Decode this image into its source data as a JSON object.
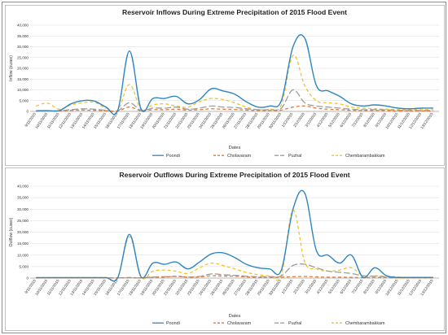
{
  "dates": [
    "9/11/2015",
    "10/11/2015",
    "11/11/2015",
    "12/11/2015",
    "13/11/2015",
    "14/11/2015",
    "15/11/2015",
    "16/11/2015",
    "17/11/2015",
    "18/11/2015",
    "19/11/2015",
    "20/11/2015",
    "21/11/2015",
    "22/11/2015",
    "23/11/2015",
    "24/11/2015",
    "25/11/2015",
    "26/11/2015",
    "27/11/2015",
    "28/11/2015",
    "29/11/2015",
    "30/11/2015",
    "1/12/2015",
    "2/12/2015",
    "3/12/2015",
    "4/12/2015",
    "5/12/2015",
    "6/12/2015",
    "7/12/2015",
    "8/12/2015",
    "9/12/2015",
    "10/12/2015",
    "11/12/2015",
    "12/12/2015",
    "13/12/2015"
  ],
  "colors": {
    "poondi": "#2e86c1",
    "cholavaram": "#e07b39",
    "puzhal": "#9e9e9e",
    "chembarambakkam": "#f2c12e"
  },
  "chart_data": [
    {
      "type": "line",
      "title": "Reservoir Inflows During Extreme Precipitation of 2015 Flood Event",
      "xlabel": "Dates",
      "ylabel": "Inflow (cusec)",
      "ylim": [
        0,
        40000
      ],
      "yticks": [
        "0",
        "5,000",
        "10,000",
        "15,000",
        "20,000",
        "25,000",
        "30,000",
        "35,000",
        "40,000"
      ],
      "grid": true,
      "legend_position": "bottom",
      "series": [
        {
          "name": "Poondi",
          "style": "solid",
          "values": [
            300,
            350,
            400,
            3500,
            5000,
            4800,
            2000,
            500,
            28000,
            1000,
            6000,
            6000,
            7000,
            3500,
            5500,
            10500,
            9500,
            8000,
            4500,
            2000,
            2500,
            5000,
            30000,
            34000,
            12000,
            9500,
            7000,
            3500,
            2500,
            3000,
            2500,
            1500,
            1200,
            1500,
            1500
          ]
        },
        {
          "name": "Cholavaram",
          "style": "dashed",
          "values": [
            200,
            200,
            200,
            500,
            600,
            500,
            300,
            200,
            2000,
            300,
            800,
            800,
            1000,
            600,
            800,
            1200,
            1000,
            900,
            600,
            400,
            400,
            600,
            2000,
            2500,
            1500,
            1000,
            800,
            500,
            400,
            400,
            300,
            200,
            200,
            200,
            200
          ]
        },
        {
          "name": "Puzhal",
          "style": "longdash",
          "values": [
            200,
            200,
            300,
            800,
            1200,
            1000,
            500,
            300,
            4000,
            500,
            1500,
            1500,
            2000,
            1000,
            1500,
            2500,
            2000,
            1800,
            1200,
            800,
            800,
            1500,
            10000,
            4000,
            2500,
            2000,
            1500,
            1000,
            800,
            800,
            700,
            500,
            400,
            400,
            400
          ]
        },
        {
          "name": "Chembarambakkam",
          "style": "dashed",
          "values": [
            2500,
            3800,
            1000,
            3000,
            4000,
            4200,
            1500,
            500,
            12500,
            1000,
            3000,
            3500,
            2500,
            2000,
            4500,
            6000,
            5500,
            4000,
            2000,
            800,
            1000,
            3000,
            26000,
            12000,
            5000,
            4000,
            3500,
            2000,
            1500,
            1200,
            1000,
            800,
            800,
            800,
            800
          ]
        }
      ]
    },
    {
      "type": "line",
      "title": "Reservoir Outflows During Extreme Precipitation of 2015 Flood Event",
      "xlabel": "Dates",
      "ylabel": "Outflow (cusec)",
      "ylim": [
        0,
        40000
      ],
      "yticks": [
        "0",
        "5,000",
        "10,000",
        "15,000",
        "20,000",
        "25,000",
        "30,000",
        "35,000",
        "40,000"
      ],
      "grid": true,
      "legend_position": "bottom",
      "series": [
        {
          "name": "Poondi",
          "style": "solid",
          "values": [
            200,
            200,
            200,
            200,
            200,
            200,
            200,
            200,
            19000,
            500,
            6500,
            6000,
            7000,
            4000,
            7000,
            10500,
            11000,
            9000,
            6000,
            4500,
            4000,
            3500,
            30000,
            37000,
            12000,
            10000,
            6500,
            10000,
            300,
            4500,
            1000,
            300,
            300,
            300,
            300
          ]
        },
        {
          "name": "Cholavaram",
          "style": "dashed",
          "values": [
            100,
            100,
            100,
            100,
            100,
            100,
            100,
            100,
            200,
            100,
            300,
            400,
            800,
            400,
            500,
            1000,
            900,
            800,
            500,
            300,
            300,
            400,
            600,
            700,
            500,
            400,
            400,
            300,
            200,
            200,
            200,
            100,
            100,
            100,
            100
          ]
        },
        {
          "name": "Puzhal",
          "style": "longdash",
          "values": [
            100,
            100,
            100,
            100,
            100,
            100,
            100,
            100,
            200,
            100,
            500,
            600,
            700,
            500,
            700,
            1800,
            1500,
            1200,
            800,
            600,
            600,
            1000,
            5500,
            6000,
            4500,
            3000,
            2500,
            2000,
            1000,
            800,
            500,
            300,
            200,
            200,
            200
          ]
        },
        {
          "name": "Chembarambakkam",
          "style": "dashed",
          "values": [
            200,
            200,
            200,
            200,
            200,
            200,
            200,
            200,
            18000,
            500,
            3000,
            3500,
            3000,
            2000,
            4500,
            6500,
            5500,
            4000,
            2500,
            1500,
            1000,
            1500,
            29500,
            7000,
            4000,
            3000,
            3500,
            4500,
            1000,
            1000,
            800,
            500,
            300,
            300,
            300
          ]
        }
      ]
    }
  ]
}
